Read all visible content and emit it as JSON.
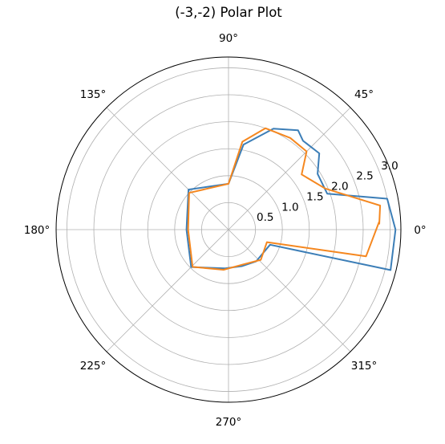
{
  "chart_data": {
    "type": "polar-line",
    "title": "(-3,-2) Polar Plot",
    "angle_unit": "degrees",
    "angle_ticks": [
      "0°",
      "45°",
      "90°",
      "135°",
      "180°",
      "225°",
      "270°",
      "315°"
    ],
    "rlim": [
      0,
      3.2
    ],
    "radial_ticks": [
      0.5,
      1.0,
      1.5,
      2.0,
      2.5,
      3.0
    ],
    "radial_tick_labels": [
      "0.5",
      "1.0",
      "1.5",
      "2.0",
      "2.5",
      "3.0"
    ],
    "grid": true,
    "series": [
      {
        "color": "#3c7eb7",
        "points": [
          {
            "theta": 0,
            "r": 3.1
          },
          {
            "theta": 11,
            "r": 3.0
          },
          {
            "theta": 20,
            "r": 1.95
          },
          {
            "theta": 32,
            "r": 1.95
          },
          {
            "theta": 40,
            "r": 2.2
          },
          {
            "theta": 50,
            "r": 2.15
          },
          {
            "theta": 55,
            "r": 2.25
          },
          {
            "theta": 66,
            "r": 2.05
          },
          {
            "theta": 80,
            "r": 1.6
          },
          {
            "theta": 90,
            "r": 0.85
          },
          {
            "theta": 135,
            "r": 1.05
          },
          {
            "theta": 180,
            "r": 0.78
          },
          {
            "theta": 225,
            "r": 0.98
          },
          {
            "theta": 265,
            "r": 0.72
          },
          {
            "theta": 290,
            "r": 0.72
          },
          {
            "theta": 311,
            "r": 0.78
          },
          {
            "theta": 340,
            "r": 0.82
          },
          {
            "theta": 346,
            "r": 3.1
          },
          {
            "theta": 360,
            "r": 3.1
          }
        ]
      },
      {
        "color": "#f5871f",
        "points": [
          {
            "theta": 2,
            "r": 2.8
          },
          {
            "theta": 9,
            "r": 2.85
          },
          {
            "theta": 23,
            "r": 1.95
          },
          {
            "theta": 37,
            "r": 1.7
          },
          {
            "theta": 45,
            "r": 2.05
          },
          {
            "theta": 56,
            "r": 2.05
          },
          {
            "theta": 70,
            "r": 2.0
          },
          {
            "theta": 81,
            "r": 1.65
          },
          {
            "theta": 90,
            "r": 0.85
          },
          {
            "theta": 137,
            "r": 1.0
          },
          {
            "theta": 180,
            "r": 0.75
          },
          {
            "theta": 226,
            "r": 0.96
          },
          {
            "theta": 263,
            "r": 0.75
          },
          {
            "theta": 293,
            "r": 0.7
          },
          {
            "theta": 317,
            "r": 0.82
          },
          {
            "theta": 342,
            "r": 0.75
          },
          {
            "theta": 349,
            "r": 2.6
          },
          {
            "theta": 363,
            "r": 2.8
          }
        ]
      }
    ]
  }
}
